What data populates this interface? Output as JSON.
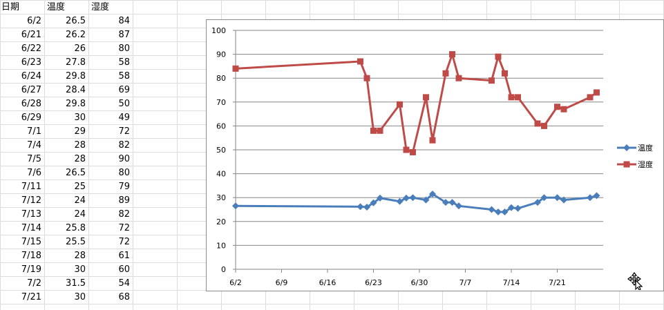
{
  "sheet": {
    "headers": [
      "日期",
      "温度",
      "湿度"
    ],
    "rows": [
      [
        "6/2",
        "26.5",
        "84"
      ],
      [
        "6/21",
        "26.2",
        "87"
      ],
      [
        "6/22",
        "26",
        "80"
      ],
      [
        "6/23",
        "27.8",
        "58"
      ],
      [
        "6/24",
        "29.8",
        "58"
      ],
      [
        "6/27",
        "28.4",
        "69"
      ],
      [
        "6/28",
        "29.8",
        "50"
      ],
      [
        "6/29",
        "30",
        "49"
      ],
      [
        "7/1",
        "29",
        "72"
      ],
      [
        "7/4",
        "28",
        "82"
      ],
      [
        "7/5",
        "28",
        "90"
      ],
      [
        "7/6",
        "26.5",
        "80"
      ],
      [
        "7/11",
        "25",
        "79"
      ],
      [
        "7/12",
        "24",
        "89"
      ],
      [
        "7/13",
        "24",
        "82"
      ],
      [
        "7/14",
        "25.8",
        "72"
      ],
      [
        "7/15",
        "25.5",
        "72"
      ],
      [
        "7/18",
        "28",
        "61"
      ],
      [
        "7/19",
        "30",
        "60"
      ],
      [
        "7/2",
        "31.5",
        "54"
      ],
      [
        "7/21",
        "30",
        "68"
      ]
    ]
  },
  "chart_data": {
    "type": "line",
    "title": "",
    "xlabel": "",
    "ylabel": "",
    "ylim": [
      0,
      100
    ],
    "yticks": [
      0,
      10,
      20,
      30,
      40,
      50,
      60,
      70,
      80,
      90,
      100
    ],
    "xlim": [
      "2016-06-02",
      "2016-07-28"
    ],
    "xtick_labels": [
      "6/2",
      "6/9",
      "6/16",
      "6/23",
      "6/30",
      "7/7",
      "7/14",
      "7/21"
    ],
    "grid": "horizontal",
    "legend_position": "right",
    "series": [
      {
        "name": "温度",
        "color": "#4a7ebb",
        "marker": "diamond",
        "points": [
          [
            "2016-06-02",
            26.5
          ],
          [
            "2016-06-21",
            26.2
          ],
          [
            "2016-06-22",
            26
          ],
          [
            "2016-06-23",
            27.8
          ],
          [
            "2016-06-24",
            29.8
          ],
          [
            "2016-06-27",
            28.4
          ],
          [
            "2016-06-28",
            29.8
          ],
          [
            "2016-06-29",
            30
          ],
          [
            "2016-07-01",
            29
          ],
          [
            "2016-07-02",
            31.5
          ],
          [
            "2016-07-04",
            28
          ],
          [
            "2016-07-05",
            28
          ],
          [
            "2016-07-06",
            26.5
          ],
          [
            "2016-07-11",
            25
          ],
          [
            "2016-07-12",
            24
          ],
          [
            "2016-07-13",
            24
          ],
          [
            "2016-07-14",
            25.8
          ],
          [
            "2016-07-15",
            25.5
          ],
          [
            "2016-07-18",
            28
          ],
          [
            "2016-07-19",
            30
          ],
          [
            "2016-07-21",
            30
          ],
          [
            "2016-07-22",
            29
          ],
          [
            "2016-07-26",
            30
          ],
          [
            "2016-07-27",
            30.8
          ]
        ]
      },
      {
        "name": "湿度",
        "color": "#be4b48",
        "marker": "square",
        "points": [
          [
            "2016-06-02",
            84
          ],
          [
            "2016-06-21",
            87
          ],
          [
            "2016-06-22",
            80
          ],
          [
            "2016-06-23",
            58
          ],
          [
            "2016-06-24",
            58
          ],
          [
            "2016-06-27",
            69
          ],
          [
            "2016-06-28",
            50
          ],
          [
            "2016-06-29",
            49
          ],
          [
            "2016-07-01",
            72
          ],
          [
            "2016-07-02",
            54
          ],
          [
            "2016-07-04",
            82
          ],
          [
            "2016-07-05",
            90
          ],
          [
            "2016-07-06",
            80
          ],
          [
            "2016-07-11",
            79
          ],
          [
            "2016-07-12",
            89
          ],
          [
            "2016-07-13",
            82
          ],
          [
            "2016-07-14",
            72
          ],
          [
            "2016-07-15",
            72
          ],
          [
            "2016-07-18",
            61
          ],
          [
            "2016-07-19",
            60
          ],
          [
            "2016-07-21",
            68
          ],
          [
            "2016-07-22",
            67
          ],
          [
            "2016-07-26",
            72
          ],
          [
            "2016-07-27",
            74
          ]
        ]
      }
    ]
  }
}
